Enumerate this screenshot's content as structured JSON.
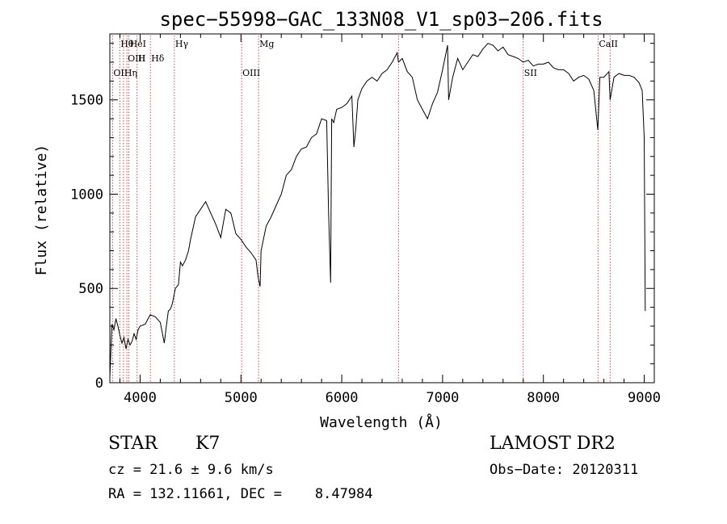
{
  "chart_data": {
    "type": "line",
    "title": "spec−55998−GAC_133N08_V1_sp03−206.fits",
    "xlabel": "Wavelength (Å)",
    "ylabel": "Flux (relative)",
    "xlim": [
      3700,
      9100
    ],
    "ylim": [
      0,
      1850
    ],
    "xticks": [
      4000,
      5000,
      6000,
      7000,
      8000,
      9000
    ],
    "yticks": [
      0,
      500,
      1000,
      1500
    ],
    "grid": false,
    "line_colors": {
      "spectrum": "#000000",
      "markers": "#cc3333"
    },
    "series": [
      {
        "x": [
          3700,
          3720,
          3740,
          3760,
          3780,
          3800,
          3820,
          3840,
          3860,
          3880,
          3900,
          3920,
          3940,
          3960,
          3980,
          4000,
          4050,
          4100,
          4150,
          4200,
          4240,
          4260,
          4280,
          4300,
          4320,
          4350,
          4380,
          4400,
          4420,
          4450,
          4480,
          4500,
          4550,
          4600,
          4650,
          4700,
          4750,
          4800,
          4850,
          4900,
          4950,
          5000,
          5050,
          5100,
          5150,
          5170,
          5190,
          5200,
          5250,
          5300,
          5350,
          5400,
          5450,
          5500,
          5550,
          5600,
          5650,
          5700,
          5750,
          5800,
          5850,
          5870,
          5890,
          5900,
          5920,
          5950,
          6000,
          6050,
          6100,
          6120,
          6140,
          6160,
          6200,
          6250,
          6300,
          6350,
          6400,
          6450,
          6500,
          6550,
          6563,
          6600,
          6650,
          6700,
          6750,
          6800,
          6850,
          6900,
          6950,
          7000,
          7050,
          7060,
          7100,
          7150,
          7200,
          7250,
          7300,
          7350,
          7400,
          7450,
          7500,
          7550,
          7600,
          7650,
          7700,
          7750,
          7800,
          7850,
          7900,
          7950,
          8000,
          8050,
          8100,
          8150,
          8200,
          8250,
          8300,
          8350,
          8400,
          8450,
          8500,
          8540,
          8560,
          8600,
          8650,
          8662,
          8700,
          8750,
          8800,
          8850,
          8900,
          8950,
          8980,
          9000,
          9010
        ],
        "y": [
          30,
          310,
          280,
          340,
          300,
          250,
          210,
          240,
          180,
          230,
          200,
          220,
          260,
          230,
          280,
          300,
          310,
          360,
          350,
          320,
          210,
          300,
          380,
          390,
          420,
          500,
          520,
          640,
          620,
          650,
          700,
          760,
          880,
          920,
          960,
          900,
          840,
          770,
          920,
          900,
          790,
          760,
          720,
          690,
          650,
          560,
          510,
          700,
          830,
          880,
          940,
          1000,
          1100,
          1130,
          1200,
          1240,
          1250,
          1300,
          1320,
          1400,
          1390,
          900,
          530,
          1400,
          1380,
          1450,
          1460,
          1480,
          1520,
          1250,
          1350,
          1500,
          1560,
          1600,
          1620,
          1600,
          1640,
          1660,
          1700,
          1750,
          1700,
          1720,
          1650,
          1620,
          1500,
          1450,
          1400,
          1480,
          1540,
          1660,
          1790,
          1500,
          1620,
          1720,
          1660,
          1700,
          1740,
          1730,
          1770,
          1800,
          1790,
          1760,
          1780,
          1740,
          1730,
          1720,
          1700,
          1710,
          1680,
          1690,
          1690,
          1700,
          1670,
          1660,
          1660,
          1640,
          1600,
          1620,
          1630,
          1610,
          1550,
          1340,
          1620,
          1620,
          1650,
          1500,
          1620,
          1640,
          1630,
          1630,
          1620,
          1590,
          1550,
          1300,
          380
        ]
      }
    ],
    "markers": [
      {
        "label": "Hθ",
        "x": 3798
      },
      {
        "label": "H",
        "x": 3970
      },
      {
        "label": "OII",
        "x": 3727
      },
      {
        "label": "HeI",
        "x": 3889
      },
      {
        "label": "OIII",
        "x": 3869
      },
      {
        "label": "Hη",
        "x": 3835
      },
      {
        "label": "Hγ",
        "x": 4340
      },
      {
        "label": "Hδ",
        "x": 4102
      },
      {
        "label": "OIII",
        "x": 5007
      },
      {
        "label": "Mg",
        "x": 5175
      },
      {
        "label": "",
        "x": 6563
      },
      {
        "label": "SII",
        "x": 7800
      },
      {
        "label": "CaII",
        "x": 8542
      },
      {
        "label": "",
        "x": 8662
      }
    ]
  },
  "info": {
    "object_type": "STAR",
    "subclass": "K7",
    "survey": "LAMOST DR2",
    "cz": "cz = 21.6 ± 9.6 km/s",
    "obs_date": "Obs−Date: 20120311",
    "radec": "RA = 132.11661, DEC =    8.47984"
  }
}
